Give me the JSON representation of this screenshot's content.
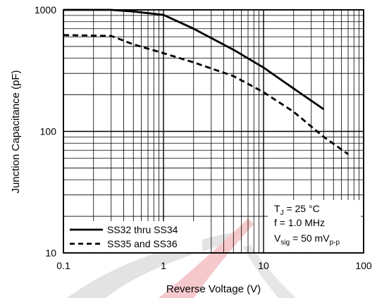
{
  "chart_data": {
    "type": "line",
    "title": "",
    "xlabel": "Reverse Voltage (V)",
    "ylabel": "Junction Capacitance (pF)",
    "xscale": "log",
    "yscale": "log",
    "xlim": [
      0.1,
      100
    ],
    "ylim": [
      10,
      1000
    ],
    "grid": true,
    "legend_position": "bottom-left",
    "x_ticks": [
      {
        "value": 0.1,
        "label": "0.1"
      },
      {
        "value": 1,
        "label": "1"
      },
      {
        "value": 10,
        "label": "10"
      },
      {
        "value": 100,
        "label": "100"
      }
    ],
    "y_ticks": [
      {
        "value": 10,
        "label": "10"
      },
      {
        "value": 100,
        "label": "100"
      },
      {
        "value": 1000,
        "label": "1000"
      }
    ],
    "series": [
      {
        "name": "SS32 thru SS34",
        "style": "solid",
        "color": "#000000",
        "points": [
          [
            0.1,
            1000
          ],
          [
            0.3,
            1000
          ],
          [
            0.5,
            970
          ],
          [
            1,
            910
          ],
          [
            2,
            700
          ],
          [
            5,
            470
          ],
          [
            10,
            335
          ],
          [
            20,
            225
          ],
          [
            40,
            152
          ]
        ]
      },
      {
        "name": "SS35 and SS36",
        "style": "dashed",
        "color": "#000000",
        "points": [
          [
            0.1,
            620
          ],
          [
            0.3,
            610
          ],
          [
            0.5,
            520
          ],
          [
            1,
            440
          ],
          [
            2,
            370
          ],
          [
            5,
            285
          ],
          [
            10,
            210
          ],
          [
            20,
            145
          ],
          [
            40,
            90
          ],
          [
            70,
            65
          ]
        ]
      }
    ],
    "conditions": [
      {
        "main": "T",
        "sub": "J",
        "rest": " = 25 °C"
      },
      {
        "main": "f = 1.0 MHz",
        "sub": "",
        "rest": ""
      },
      {
        "main": "V",
        "sub": "sig",
        "rest": " = 50 mV",
        "sub2": "p-p"
      }
    ]
  }
}
